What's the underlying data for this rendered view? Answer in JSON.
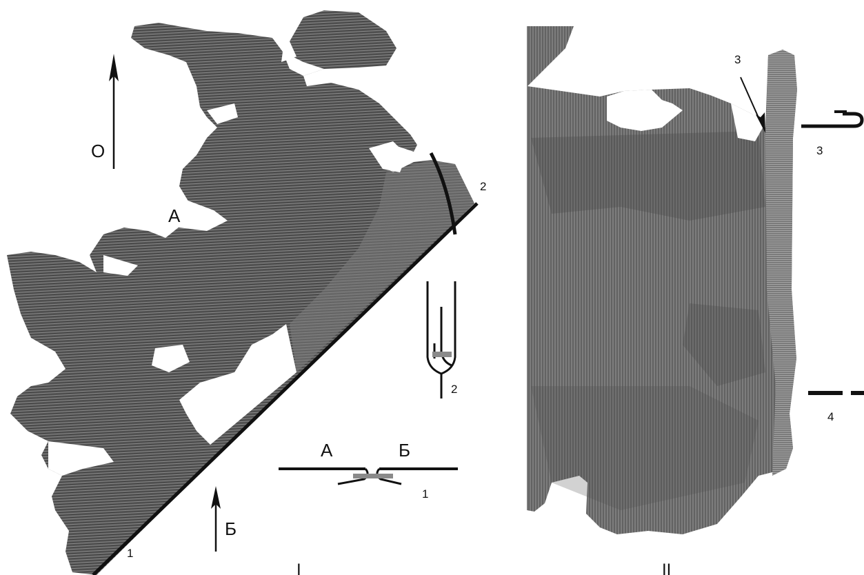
{
  "panels": [
    {
      "roman": "I",
      "photo": "textile-fragment-photo",
      "labels": {
        "north_arrow": "О",
        "side_a": "А",
        "side_b": "Б",
        "seam_1": "1",
        "seam_2": "2"
      },
      "insets": [
        {
          "number": "2",
          "icon": "seam-section-vertical-icon"
        },
        {
          "number": "1",
          "left": "А",
          "right": "Б",
          "icon": "seam-section-horizontal-icon"
        }
      ]
    },
    {
      "roman": "II",
      "photo": "textile-fragment-photo",
      "labels": {
        "edge_3": "3"
      },
      "insets": [
        {
          "number": "3",
          "icon": "hemmed-edge-section-icon"
        },
        {
          "number": "4",
          "icon": "selvage-section-icon"
        }
      ]
    }
  ],
  "colors": {
    "fabric_dark": "#4a4a4a",
    "fabric_mid": "#6a6a6a",
    "fabric_light": "#8c8c8c",
    "seam_gray": "#8a8a8a",
    "ink": "#111111"
  }
}
